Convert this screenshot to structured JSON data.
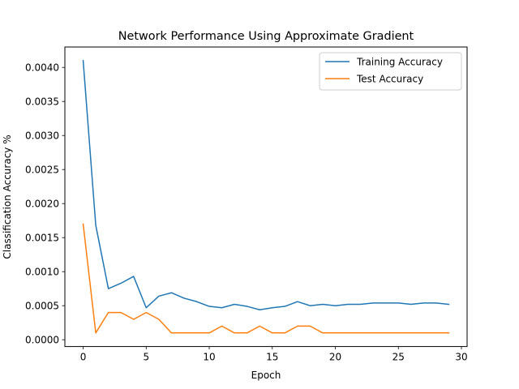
{
  "chart_data": {
    "type": "line",
    "title": "Network Performance Using Approximate Gradient",
    "xlabel": "Epoch",
    "ylabel": "Classification Accuracy %",
    "xlim": [
      -1.45,
      30.45
    ],
    "ylim": [
      -0.0001,
      0.0043
    ],
    "xticks": [
      0,
      5,
      10,
      15,
      20,
      25,
      30
    ],
    "xtick_labels": [
      "0",
      "5",
      "10",
      "15",
      "20",
      "25",
      "30"
    ],
    "yticks": [
      0.0,
      0.0005,
      0.001,
      0.0015,
      0.002,
      0.0025,
      0.003,
      0.0035,
      0.004
    ],
    "ytick_labels": [
      "0.0000",
      "0.0005",
      "0.0010",
      "0.0015",
      "0.0020",
      "0.0025",
      "0.0030",
      "0.0035",
      "0.0040"
    ],
    "grid": false,
    "legend_position": "top-right",
    "x": [
      0,
      1,
      2,
      3,
      4,
      5,
      6,
      7,
      8,
      9,
      10,
      11,
      12,
      13,
      14,
      15,
      16,
      17,
      18,
      19,
      20,
      21,
      22,
      23,
      24,
      25,
      26,
      27,
      28,
      29
    ],
    "series": [
      {
        "name": "Training Accuracy",
        "color": "#1f77b4",
        "values": [
          0.0041,
          0.00168,
          0.00075,
          0.00083,
          0.00093,
          0.00047,
          0.00064,
          0.00069,
          0.00061,
          0.00056,
          0.00049,
          0.00047,
          0.00052,
          0.00049,
          0.00044,
          0.00047,
          0.00049,
          0.00056,
          0.0005,
          0.00052,
          0.0005,
          0.00052,
          0.00052,
          0.00054,
          0.00054,
          0.00054,
          0.00052,
          0.00054,
          0.00054,
          0.00052
        ]
      },
      {
        "name": "Test Accuracy",
        "color": "#ff7f0e",
        "values": [
          0.0017,
          0.0001,
          0.0004,
          0.0004,
          0.0003,
          0.0004,
          0.0003,
          0.0001,
          0.0001,
          0.0001,
          0.0001,
          0.0002,
          0.0001,
          0.0001,
          0.0002,
          0.0001,
          0.0001,
          0.0002,
          0.0002,
          0.0001,
          0.0001,
          0.0001,
          0.0001,
          0.0001,
          0.0001,
          0.0001,
          0.0001,
          0.0001,
          0.0001,
          0.0001
        ]
      }
    ]
  }
}
